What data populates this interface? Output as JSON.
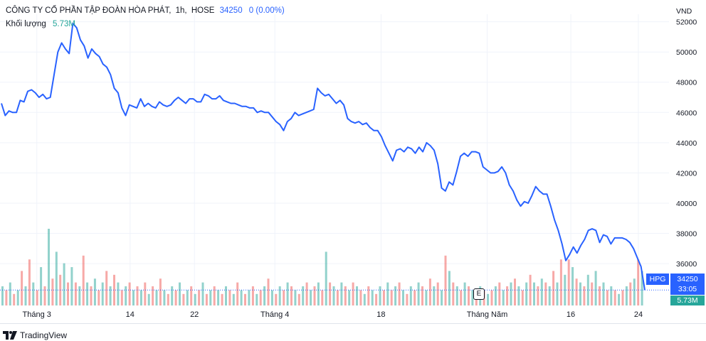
{
  "header": {
    "company": "CÔNG TY CỔ PHẦN TẬP ĐOÀN HÒA PHÁT",
    "interval": "1h",
    "exchange": "HOSE",
    "last_price": "34250",
    "change": "0 (0.00%)",
    "volume_label": "Khối lượng",
    "volume_value": "5.73M"
  },
  "currency": "VND",
  "tags": {
    "symbol": "HPG",
    "price": "34250",
    "countdown": "33:05",
    "volume": "5.73M"
  },
  "earnings_label": "E",
  "branding": "TradingView",
  "colors": {
    "line": "#2962ff",
    "volume_up": "#26a69a",
    "volume_down": "#ef5350",
    "grid": "#f0f3fa"
  },
  "chart_data": {
    "type": "line",
    "series": [
      {
        "values": [
          46600,
          45800,
          46100,
          46000,
          46000,
          46800,
          46700,
          47400,
          47500,
          47300,
          47000,
          47200,
          46900,
          47000,
          48500,
          50000,
          50600,
          50200,
          49900,
          51900,
          51600,
          50800,
          50400,
          49600,
          50200,
          49900,
          49700,
          49200,
          49000,
          48500,
          47600,
          47300,
          46300,
          45800,
          46500,
          46400,
          46300,
          46900,
          46400,
          46600,
          46400,
          46300,
          46700,
          46500,
          46400,
          46500,
          46800,
          47000,
          46800,
          46600,
          46900,
          46900,
          46700,
          46700,
          47200,
          47100,
          46900,
          46900,
          47100,
          46800,
          46700,
          46600,
          46600,
          46500,
          46400,
          46400,
          46300,
          46300,
          46000,
          46100,
          46000,
          46000,
          45700,
          45400,
          45200,
          44800,
          45400,
          45600,
          46000,
          45800,
          45900,
          46000,
          46100,
          46200,
          47600,
          47300,
          47100,
          47200,
          46900,
          46600,
          46800,
          46500,
          45600,
          45400,
          45300,
          45400,
          45200,
          45300,
          45000,
          44800,
          44800,
          44400,
          43800,
          43300,
          42800,
          43500,
          43600,
          43400,
          43700,
          43600,
          43300,
          43700,
          43400,
          44000,
          43800,
          43500,
          42600,
          41000,
          40800,
          41400,
          41200,
          42100,
          43100,
          43300,
          43100,
          43400,
          43400,
          43300,
          42400,
          42200,
          42000,
          42000,
          42100,
          42400,
          42000,
          41200,
          40800,
          40200,
          39800,
          40100,
          40000,
          40500,
          41100,
          40800,
          40600,
          40600,
          39800,
          38900,
          38200,
          37300,
          36200,
          36600,
          37100,
          36700,
          37200,
          37600,
          38200,
          38300,
          38200,
          37400,
          37900,
          37800,
          37300,
          37700,
          37700,
          37700,
          37600,
          37400,
          37000,
          36400,
          35800,
          34250
        ],
        "last": 34250
      }
    ],
    "volume": [
      {
        "u": 1,
        "h": 0.25
      },
      {
        "u": 0,
        "h": 0.2
      },
      {
        "u": 1,
        "h": 0.3
      },
      {
        "u": 0,
        "h": 0.15
      },
      {
        "u": 1,
        "h": 0.2
      },
      {
        "u": 0,
        "h": 0.45
      },
      {
        "u": 1,
        "h": 0.25
      },
      {
        "u": 0,
        "h": 0.6
      },
      {
        "u": 1,
        "h": 0.3
      },
      {
        "u": 0,
        "h": 0.2
      },
      {
        "u": 1,
        "h": 0.5
      },
      {
        "u": 0,
        "h": 0.25
      },
      {
        "u": 1,
        "h": 1.0
      },
      {
        "u": 0,
        "h": 0.35
      },
      {
        "u": 1,
        "h": 0.7
      },
      {
        "u": 0,
        "h": 0.4
      },
      {
        "u": 1,
        "h": 0.55
      },
      {
        "u": 0,
        "h": 0.3
      },
      {
        "u": 1,
        "h": 0.5
      },
      {
        "u": 0,
        "h": 0.3
      },
      {
        "u": 1,
        "h": 0.25
      },
      {
        "u": 0,
        "h": 0.65
      },
      {
        "u": 1,
        "h": 0.3
      },
      {
        "u": 0,
        "h": 0.25
      },
      {
        "u": 1,
        "h": 0.35
      },
      {
        "u": 0,
        "h": 0.2
      },
      {
        "u": 1,
        "h": 0.3
      },
      {
        "u": 0,
        "h": 0.45
      },
      {
        "u": 1,
        "h": 0.25
      },
      {
        "u": 0,
        "h": 0.4
      },
      {
        "u": 1,
        "h": 0.3
      },
      {
        "u": 0,
        "h": 0.2
      },
      {
        "u": 1,
        "h": 0.25
      },
      {
        "u": 0,
        "h": 0.3
      },
      {
        "u": 1,
        "h": 0.2
      },
      {
        "u": 0,
        "h": 0.25
      },
      {
        "u": 1,
        "h": 0.2
      },
      {
        "u": 0,
        "h": 0.3
      },
      {
        "u": 1,
        "h": 0.15
      },
      {
        "u": 0,
        "h": 0.25
      },
      {
        "u": 1,
        "h": 0.2
      },
      {
        "u": 0,
        "h": 0.35
      },
      {
        "u": 1,
        "h": 0.2
      },
      {
        "u": 0,
        "h": 0.15
      },
      {
        "u": 1,
        "h": 0.25
      },
      {
        "u": 0,
        "h": 0.2
      },
      {
        "u": 1,
        "h": 0.3
      },
      {
        "u": 0,
        "h": 0.15
      },
      {
        "u": 1,
        "h": 0.2
      },
      {
        "u": 0,
        "h": 0.25
      },
      {
        "u": 1,
        "h": 0.15
      },
      {
        "u": 0,
        "h": 0.2
      },
      {
        "u": 1,
        "h": 0.3
      },
      {
        "u": 0,
        "h": 0.15
      },
      {
        "u": 1,
        "h": 0.2
      },
      {
        "u": 0,
        "h": 0.25
      },
      {
        "u": 1,
        "h": 0.2
      },
      {
        "u": 0,
        "h": 0.15
      },
      {
        "u": 1,
        "h": 0.25
      },
      {
        "u": 0,
        "h": 0.2
      },
      {
        "u": 1,
        "h": 0.15
      },
      {
        "u": 0,
        "h": 0.3
      },
      {
        "u": 1,
        "h": 0.2
      },
      {
        "u": 0,
        "h": 0.15
      },
      {
        "u": 1,
        "h": 0.2
      },
      {
        "u": 0,
        "h": 0.25
      },
      {
        "u": 1,
        "h": 0.15
      },
      {
        "u": 0,
        "h": 0.2
      },
      {
        "u": 1,
        "h": 0.25
      },
      {
        "u": 0,
        "h": 0.35
      },
      {
        "u": 1,
        "h": 0.2
      },
      {
        "u": 0,
        "h": 0.15
      },
      {
        "u": 1,
        "h": 0.25
      },
      {
        "u": 0,
        "h": 0.2
      },
      {
        "u": 1,
        "h": 0.3
      },
      {
        "u": 0,
        "h": 0.25
      },
      {
        "u": 1,
        "h": 0.2
      },
      {
        "u": 0,
        "h": 0.15
      },
      {
        "u": 1,
        "h": 0.25
      },
      {
        "u": 0,
        "h": 0.3
      },
      {
        "u": 1,
        "h": 0.2
      },
      {
        "u": 0,
        "h": 0.25
      },
      {
        "u": 1,
        "h": 0.3
      },
      {
        "u": 0,
        "h": 0.2
      },
      {
        "u": 1,
        "h": 0.7
      },
      {
        "u": 0,
        "h": 0.3
      },
      {
        "u": 1,
        "h": 0.25
      },
      {
        "u": 0,
        "h": 0.2
      },
      {
        "u": 1,
        "h": 0.3
      },
      {
        "u": 0,
        "h": 0.25
      },
      {
        "u": 1,
        "h": 0.2
      },
      {
        "u": 0,
        "h": 0.3
      },
      {
        "u": 1,
        "h": 0.25
      },
      {
        "u": 0,
        "h": 0.2
      },
      {
        "u": 1,
        "h": 0.15
      },
      {
        "u": 0,
        "h": 0.25
      },
      {
        "u": 1,
        "h": 0.2
      },
      {
        "u": 0,
        "h": 0.15
      },
      {
        "u": 1,
        "h": 0.25
      },
      {
        "u": 0,
        "h": 0.2
      },
      {
        "u": 1,
        "h": 0.3
      },
      {
        "u": 0,
        "h": 0.2
      },
      {
        "u": 1,
        "h": 0.25
      },
      {
        "u": 0,
        "h": 0.3
      },
      {
        "u": 1,
        "h": 0.2
      },
      {
        "u": 0,
        "h": 0.15
      },
      {
        "u": 1,
        "h": 0.25
      },
      {
        "u": 0,
        "h": 0.2
      },
      {
        "u": 1,
        "h": 0.3
      },
      {
        "u": 0,
        "h": 0.25
      },
      {
        "u": 1,
        "h": 0.2
      },
      {
        "u": 0,
        "h": 0.35
      },
      {
        "u": 1,
        "h": 0.25
      },
      {
        "u": 0,
        "h": 0.3
      },
      {
        "u": 1,
        "h": 0.2
      },
      {
        "u": 0,
        "h": 0.65
      },
      {
        "u": 1,
        "h": 0.45
      },
      {
        "u": 0,
        "h": 0.3
      },
      {
        "u": 1,
        "h": 0.25
      },
      {
        "u": 0,
        "h": 0.2
      },
      {
        "u": 1,
        "h": 0.3
      },
      {
        "u": 0,
        "h": 0.25
      },
      {
        "u": 1,
        "h": 0.2
      },
      {
        "u": 0,
        "h": 0.15
      },
      {
        "u": 1,
        "h": 0.25
      },
      {
        "u": 0,
        "h": 0.2
      },
      {
        "u": 1,
        "h": 0.15
      },
      {
        "u": 0,
        "h": 0.2
      },
      {
        "u": 1,
        "h": 0.25
      },
      {
        "u": 0,
        "h": 0.3
      },
      {
        "u": 1,
        "h": 0.2
      },
      {
        "u": 0,
        "h": 0.25
      },
      {
        "u": 1,
        "h": 0.3
      },
      {
        "u": 0,
        "h": 0.35
      },
      {
        "u": 1,
        "h": 0.25
      },
      {
        "u": 0,
        "h": 0.2
      },
      {
        "u": 1,
        "h": 0.3
      },
      {
        "u": 0,
        "h": 0.4
      },
      {
        "u": 1,
        "h": 0.3
      },
      {
        "u": 0,
        "h": 0.25
      },
      {
        "u": 1,
        "h": 0.35
      },
      {
        "u": 0,
        "h": 0.3
      },
      {
        "u": 1,
        "h": 0.25
      },
      {
        "u": 0,
        "h": 0.45
      },
      {
        "u": 1,
        "h": 0.3
      },
      {
        "u": 0,
        "h": 0.6
      },
      {
        "u": 1,
        "h": 0.4
      },
      {
        "u": 0,
        "h": 0.6
      },
      {
        "u": 1,
        "h": 0.5
      },
      {
        "u": 0,
        "h": 0.35
      },
      {
        "u": 1,
        "h": 0.3
      },
      {
        "u": 0,
        "h": 0.25
      },
      {
        "u": 1,
        "h": 0.4
      },
      {
        "u": 0,
        "h": 0.3
      },
      {
        "u": 1,
        "h": 0.45
      },
      {
        "u": 0,
        "h": 0.25
      },
      {
        "u": 1,
        "h": 0.3
      },
      {
        "u": 0,
        "h": 0.2
      },
      {
        "u": 1,
        "h": 0.25
      },
      {
        "u": 0,
        "h": 0.2
      },
      {
        "u": 1,
        "h": 0.15
      },
      {
        "u": 0,
        "h": 0.2
      },
      {
        "u": 1,
        "h": 0.25
      },
      {
        "u": 0,
        "h": 0.3
      },
      {
        "u": 1,
        "h": 0.35
      },
      {
        "u": 0,
        "h": 0.6
      },
      {
        "u": 1,
        "h": 0.45
      }
    ],
    "ylim": [
      33700,
      52500
    ],
    "yticks": [
      36000,
      38000,
      40000,
      42000,
      44000,
      46000,
      48000,
      50000,
      52000
    ],
    "xticks": [
      {
        "label": "Tháng 3",
        "pos": 0.055
      },
      {
        "label": "14",
        "pos": 0.2
      },
      {
        "label": "22",
        "pos": 0.3
      },
      {
        "label": "Tháng 4",
        "pos": 0.425
      },
      {
        "label": "18",
        "pos": 0.59
      },
      {
        "label": "Tháng Năm",
        "pos": 0.755
      },
      {
        "label": "16",
        "pos": 0.885
      },
      {
        "label": "24",
        "pos": 0.99
      }
    ],
    "grid": true
  }
}
